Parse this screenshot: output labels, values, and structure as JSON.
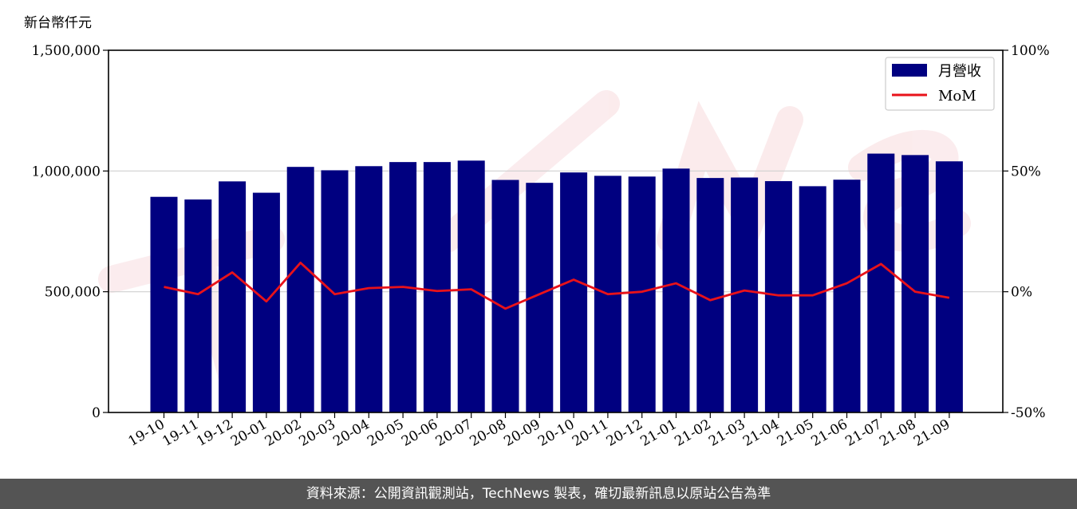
{
  "chart_data": {
    "type": "bar",
    "y_unit_label": "新台幣仟元",
    "categories": [
      "19-10",
      "19-11",
      "19-12",
      "20-01",
      "20-02",
      "20-03",
      "20-04",
      "20-05",
      "20-06",
      "20-07",
      "20-08",
      "20-09",
      "20-10",
      "20-11",
      "20-12",
      "21-01",
      "21-02",
      "21-03",
      "21-04",
      "21-05",
      "21-06",
      "21-07",
      "21-08",
      "21-09"
    ],
    "series": [
      {
        "name": "月營收",
        "type": "bar",
        "axis": "left",
        "color": "#000080",
        "values": [
          893000,
          882000,
          957000,
          910000,
          1017000,
          1003000,
          1020000,
          1037000,
          1037000,
          1043000,
          963000,
          951000,
          994000,
          980000,
          977000,
          1010000,
          971000,
          973000,
          958000,
          937000,
          964000,
          1072000,
          1066000,
          1040000
        ]
      },
      {
        "name": "MoM",
        "type": "line",
        "axis": "right",
        "color": "#e8121a",
        "values": [
          2.0,
          -1.0,
          8.0,
          -4.0,
          12.0,
          -1.0,
          1.5,
          2.0,
          0.3,
          1.0,
          -7.0,
          -1.0,
          5.0,
          -1.0,
          0.0,
          3.5,
          -3.5,
          0.5,
          -1.5,
          -1.5,
          3.5,
          11.5,
          0.0,
          -2.5
        ]
      }
    ],
    "y_left": {
      "min": 0,
      "max": 1500000,
      "ticks": [
        0,
        500000,
        1000000,
        1500000
      ],
      "tick_labels": [
        "0",
        "500,000",
        "1,000,000",
        "1,500,000"
      ]
    },
    "y_right": {
      "min": -50,
      "max": 100,
      "ticks": [
        -50,
        0,
        50,
        100
      ],
      "tick_labels": [
        "-50%",
        "0%",
        "50%",
        "100%"
      ]
    },
    "grid": "horizontal",
    "legend": "top-right",
    "watermark": "TechNews"
  },
  "footer": {
    "text": "資料來源：公開資訊觀測站，TechNews 製表，確切最新訊息以原站公告為準"
  }
}
